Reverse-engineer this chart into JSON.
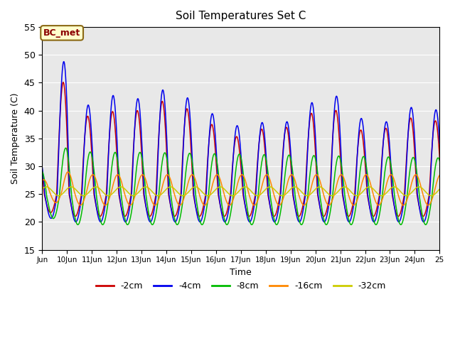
{
  "title": "Soil Temperatures Set C",
  "xlabel": "Time",
  "ylabel": "Soil Temperature (C)",
  "ylim": [
    15,
    55
  ],
  "xlim_start": 9,
  "xlim_end": 25,
  "annotation": "BC_met",
  "background_color": "#e8e8e8",
  "legend_colors": [
    "#cc0000",
    "#0000ee",
    "#00bb00",
    "#ff8800",
    "#cccc00"
  ],
  "legend_labels": [
    "-2cm",
    "-4cm",
    "-8cm",
    "-16cm",
    "-32cm"
  ],
  "x_tick_labels": [
    "Jun",
    "10Jun",
    "11Jun",
    "12Jun",
    "13Jun",
    "14Jun",
    "15Jun",
    "16Jun",
    "17Jun",
    "18Jun",
    "19Jun",
    "20Jun",
    "21Jun",
    "22Jun",
    "23Jun",
    "24Jun",
    "25"
  ],
  "x_tick_positions": [
    9,
    10,
    11,
    12,
    13,
    14,
    15,
    16,
    17,
    18,
    19,
    20,
    21,
    22,
    23,
    24,
    25
  ],
  "yticks": [
    15,
    20,
    25,
    30,
    35,
    40,
    45,
    50,
    55
  ]
}
